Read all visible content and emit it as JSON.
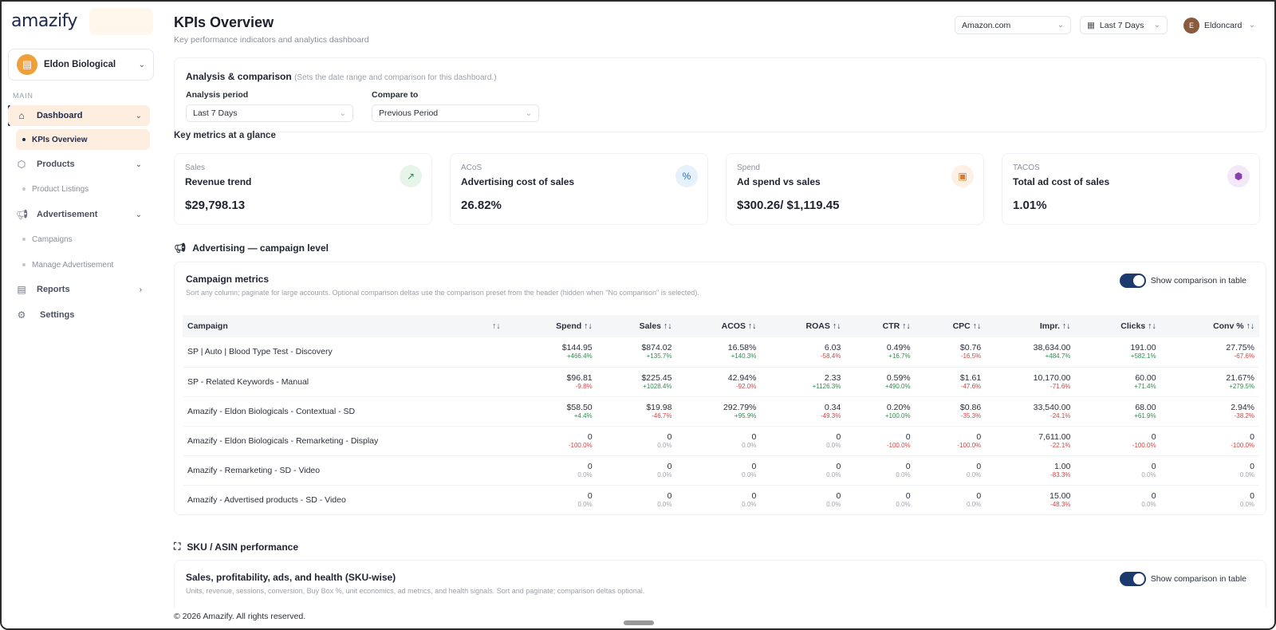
{
  "app": {
    "logo": "amazify",
    "workspace": "Eldon Biological",
    "workspace_initial": "▤"
  },
  "sidebar": {
    "section": "MAIN",
    "items": [
      {
        "label": "Dashboard",
        "icon": "home-icon"
      },
      {
        "label": "KPIs Overview"
      },
      {
        "label": "Products",
        "icon": "box-icon"
      },
      {
        "label": "Product Listings"
      },
      {
        "label": "Advertisement",
        "icon": "megaphone-icon"
      },
      {
        "label": "Campaigns"
      },
      {
        "label": "Manage Advertisement"
      },
      {
        "label": "Reports",
        "icon": "report-icon"
      },
      {
        "label": "Settings",
        "icon": "gear-icon"
      }
    ]
  },
  "header": {
    "title": "KPIs Overview",
    "subtitle": "Key performance indicators and analytics dashboard",
    "marketplace": "Amazon.com",
    "date_range": "Last 7 Days",
    "user": "Eldoncard",
    "user_initial": "E"
  },
  "analysis": {
    "title": "Analysis & comparison",
    "note": "(Sets the date range and comparison for this dashboard.)",
    "period_label": "Analysis period",
    "period_value": "Last 7 Days",
    "compare_label": "Compare to",
    "compare_value": "Previous Period"
  },
  "key_metrics": {
    "title": "Key metrics at a glance",
    "cards": [
      {
        "category": "Sales",
        "name": "Revenue trend",
        "value": "$29,798.13",
        "icon": "trend-icon",
        "color": "#e6f4ea"
      },
      {
        "category": "ACoS",
        "name": "Advertising cost of sales",
        "value": "26.82%",
        "icon": "percent-icon",
        "color": "#e6f1fb"
      },
      {
        "category": "Spend",
        "name": "Ad spend vs sales",
        "value": "$300.26/ $1,119.45",
        "icon": "wallet-icon",
        "color": "#fdf0e4"
      },
      {
        "category": "TACOS",
        "name": "Total ad cost of sales",
        "value": "1.01%",
        "icon": "cube-icon",
        "color": "#f3e8f8"
      }
    ]
  },
  "advertising": {
    "section_title": "Advertising — campaign level",
    "card_title": "Campaign metrics",
    "card_sub": "Sort any column; paginate for large accounts. Optional comparison deltas use the comparison preset from the header (hidden when \"No comparison\" is selected).",
    "toggle_label": "Show comparison in table",
    "columns": [
      "Campaign",
      "Spend",
      "Sales",
      "ACOS",
      "ROAS",
      "CTR",
      "CPC",
      "Impr.",
      "Clicks",
      "Conv %"
    ],
    "sort_glyph": "↑↓",
    "rows": [
      {
        "name": "SP | Auto | Blood Type Test - Discovery",
        "cells": [
          [
            "$144.95",
            "+466.4%",
            "pos"
          ],
          [
            "$874.02",
            "+135.7%",
            "pos"
          ],
          [
            "16.58%",
            "+140.3%",
            "pos"
          ],
          [
            "6.03",
            "-58.4%",
            "neg"
          ],
          [
            "0.49%",
            "+16.7%",
            "pos"
          ],
          [
            "$0.76",
            "-16.5%",
            "neg"
          ],
          [
            "38,634.00",
            "+484.7%",
            "pos"
          ],
          [
            "191.00",
            "+582.1%",
            "pos"
          ],
          [
            "27.75%",
            "-67.6%",
            "neg"
          ]
        ]
      },
      {
        "name": "SP - Related Keywords - Manual",
        "cells": [
          [
            "$96.81",
            "-9.8%",
            "neg"
          ],
          [
            "$225.45",
            "+1028.4%",
            "pos"
          ],
          [
            "42.94%",
            "-92.0%",
            "neg"
          ],
          [
            "2.33",
            "+1126.3%",
            "pos"
          ],
          [
            "0.59%",
            "+490.0%",
            "pos"
          ],
          [
            "$1.61",
            "-47.6%",
            "neg"
          ],
          [
            "10,170.00",
            "-71.6%",
            "neg"
          ],
          [
            "60.00",
            "+71.4%",
            "pos"
          ],
          [
            "21.67%",
            "+279.5%",
            "pos"
          ]
        ]
      },
      {
        "name": "Amazify - Eldon Biologicals - Contextual - SD",
        "cells": [
          [
            "$58.50",
            "+4.4%",
            "pos"
          ],
          [
            "$19.98",
            "-46.7%",
            "neg"
          ],
          [
            "292.79%",
            "+95.9%",
            "pos"
          ],
          [
            "0.34",
            "-49.3%",
            "neg"
          ],
          [
            "0.20%",
            "+100.0%",
            "pos"
          ],
          [
            "$0.86",
            "-35.3%",
            "neg"
          ],
          [
            "33,540.00",
            "-24.1%",
            "neg"
          ],
          [
            "68.00",
            "+61.9%",
            "pos"
          ],
          [
            "2.94%",
            "-38.2%",
            "neg"
          ]
        ]
      },
      {
        "name": "Amazify - Eldon Biologicals - Remarketing - Display",
        "cells": [
          [
            "0",
            "-100.0%",
            "neg"
          ],
          [
            "0",
            "0.0%",
            "neu"
          ],
          [
            "0",
            "0.0%",
            "neu"
          ],
          [
            "0",
            "0.0%",
            "neu"
          ],
          [
            "0",
            "-100.0%",
            "neg"
          ],
          [
            "0",
            "-100.0%",
            "neg"
          ],
          [
            "7,611.00",
            "-22.1%",
            "neg"
          ],
          [
            "0",
            "-100.0%",
            "neg"
          ],
          [
            "0",
            "-100.0%",
            "neg"
          ]
        ]
      },
      {
        "name": "Amazify - Remarketing - SD - Video",
        "cells": [
          [
            "0",
            "0.0%",
            "neu"
          ],
          [
            "0",
            "0.0%",
            "neu"
          ],
          [
            "0",
            "0.0%",
            "neu"
          ],
          [
            "0",
            "0.0%",
            "neu"
          ],
          [
            "0",
            "0.0%",
            "neu"
          ],
          [
            "0",
            "0.0%",
            "neu"
          ],
          [
            "1.00",
            "-83.3%",
            "neg"
          ],
          [
            "0",
            "0.0%",
            "neu"
          ],
          [
            "0",
            "0.0%",
            "neu"
          ]
        ]
      },
      {
        "name": "Amazify - Advertised products - SD - Video",
        "cells": [
          [
            "0",
            "0.0%",
            "neu"
          ],
          [
            "0",
            "0.0%",
            "neu"
          ],
          [
            "0",
            "0.0%",
            "neu"
          ],
          [
            "0",
            "0.0%",
            "neu"
          ],
          [
            "0",
            "0.0%",
            "neu"
          ],
          [
            "0",
            "0.0%",
            "neu"
          ],
          [
            "15.00",
            "-48.3%",
            "neg"
          ],
          [
            "0",
            "0.0%",
            "neu"
          ],
          [
            "0",
            "0.0%",
            "neu"
          ]
        ]
      }
    ]
  },
  "sku": {
    "section_title": "SKU / ASIN performance",
    "card_title": "Sales, profitability, ads, and health (SKU-wise)",
    "card_sub": "Units, revenue, sessions, conversion, Buy Box %, unit economics, ad metrics, and health signals. Sort and paginate; comparison deltas optional.",
    "toggle_label": "Show comparison in table"
  },
  "footer": "© 2026 Amazify. All rights reserved."
}
